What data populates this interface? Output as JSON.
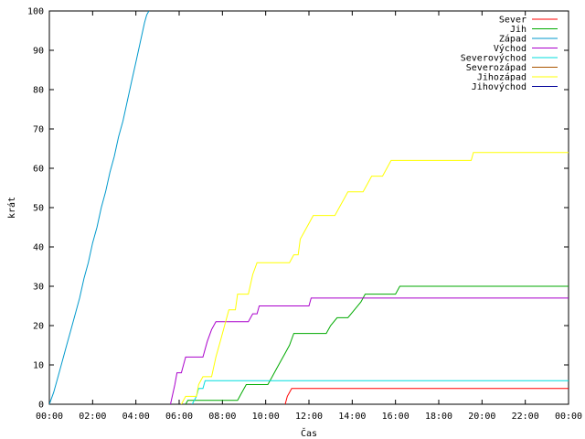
{
  "chart_data": {
    "type": "line",
    "title": "",
    "xlabel": "Čas",
    "ylabel": "krát",
    "xlim": [
      0,
      24
    ],
    "ylim": [
      0,
      100
    ],
    "grid": false,
    "legend_position": "top-right",
    "x_ticks": [
      {
        "value": 0,
        "label": "00:00"
      },
      {
        "value": 2,
        "label": "02:00"
      },
      {
        "value": 4,
        "label": "04:00"
      },
      {
        "value": 6,
        "label": "06:00"
      },
      {
        "value": 8,
        "label": "08:00"
      },
      {
        "value": 10,
        "label": "10:00"
      },
      {
        "value": 12,
        "label": "12:00"
      },
      {
        "value": 14,
        "label": "14:00"
      },
      {
        "value": 16,
        "label": "16:00"
      },
      {
        "value": 18,
        "label": "18:00"
      },
      {
        "value": 20,
        "label": "20:00"
      },
      {
        "value": 22,
        "label": "22:00"
      },
      {
        "value": 24,
        "label": "00:00"
      }
    ],
    "y_ticks": [
      {
        "value": 0,
        "label": "0"
      },
      {
        "value": 10,
        "label": "10"
      },
      {
        "value": 20,
        "label": "20"
      },
      {
        "value": 30,
        "label": "30"
      },
      {
        "value": 40,
        "label": "40"
      },
      {
        "value": 50,
        "label": "50"
      },
      {
        "value": 60,
        "label": "60"
      },
      {
        "value": 70,
        "label": "70"
      },
      {
        "value": 80,
        "label": "80"
      },
      {
        "value": 90,
        "label": "90"
      },
      {
        "value": 100,
        "label": "100"
      }
    ],
    "series": [
      {
        "name": "Sever",
        "color": "#ff0000",
        "points": [
          [
            10.9,
            0
          ],
          [
            11,
            2
          ],
          [
            11.1,
            3
          ],
          [
            11.2,
            4
          ],
          [
            24,
            4
          ]
        ]
      },
      {
        "name": "Jih",
        "color": "#00aa00",
        "points": [
          [
            6.3,
            0
          ],
          [
            6.4,
            1
          ],
          [
            8.7,
            1
          ],
          [
            8.9,
            3
          ],
          [
            9.1,
            5
          ],
          [
            10.1,
            5
          ],
          [
            10.3,
            7
          ],
          [
            10.5,
            9
          ],
          [
            10.7,
            11
          ],
          [
            10.9,
            13
          ],
          [
            11.1,
            15
          ],
          [
            11.3,
            18
          ],
          [
            12.8,
            18
          ],
          [
            13,
            20
          ],
          [
            13.3,
            22
          ],
          [
            13.8,
            22
          ],
          [
            14.1,
            24
          ],
          [
            14.4,
            26
          ],
          [
            14.6,
            28
          ],
          [
            16,
            28
          ],
          [
            16.2,
            30
          ],
          [
            24,
            30
          ]
        ]
      },
      {
        "name": "Západ",
        "color": "#0099cc",
        "points": [
          [
            0,
            0
          ],
          [
            0.2,
            3
          ],
          [
            0.4,
            7
          ],
          [
            0.6,
            11
          ],
          [
            0.8,
            15
          ],
          [
            1,
            19
          ],
          [
            1.2,
            23
          ],
          [
            1.4,
            27
          ],
          [
            1.6,
            32
          ],
          [
            1.8,
            36
          ],
          [
            2,
            41
          ],
          [
            2.2,
            45
          ],
          [
            2.4,
            50
          ],
          [
            2.6,
            54
          ],
          [
            2.8,
            59
          ],
          [
            3,
            63
          ],
          [
            3.2,
            68
          ],
          [
            3.4,
            72
          ],
          [
            3.6,
            77
          ],
          [
            3.8,
            82
          ],
          [
            4,
            87
          ],
          [
            4.2,
            92
          ],
          [
            4.4,
            97
          ],
          [
            4.5,
            99
          ],
          [
            4.6,
            100
          ]
        ]
      },
      {
        "name": "Východ",
        "color": "#aa00cc",
        "points": [
          [
            5.6,
            0
          ],
          [
            5.8,
            5
          ],
          [
            5.9,
            8
          ],
          [
            6.1,
            8
          ],
          [
            6.3,
            12
          ],
          [
            7.1,
            12
          ],
          [
            7.3,
            16
          ],
          [
            7.5,
            19
          ],
          [
            7.7,
            21
          ],
          [
            9.2,
            21
          ],
          [
            9.4,
            23
          ],
          [
            9.6,
            23
          ],
          [
            9.7,
            25
          ],
          [
            12,
            25
          ],
          [
            12.1,
            27
          ],
          [
            24,
            27
          ]
        ]
      },
      {
        "name": "Severovýchod",
        "color": "#00dddd",
        "points": [
          [
            6.6,
            0
          ],
          [
            6.8,
            2
          ],
          [
            6.9,
            4
          ],
          [
            7.1,
            4
          ],
          [
            7.2,
            6
          ],
          [
            24,
            6
          ]
        ]
      },
      {
        "name": "Severozápad",
        "color": "#aa5500",
        "points": [
          [
            24,
            0
          ]
        ]
      },
      {
        "name": "Jihozápad",
        "color": "#ffff00",
        "points": [
          [
            6.1,
            0
          ],
          [
            6.3,
            2
          ],
          [
            6.8,
            2
          ],
          [
            6.9,
            5
          ],
          [
            7.1,
            7
          ],
          [
            7.5,
            7
          ],
          [
            7.7,
            12
          ],
          [
            7.9,
            16
          ],
          [
            8.1,
            20
          ],
          [
            8.3,
            24
          ],
          [
            8.6,
            24
          ],
          [
            8.7,
            28
          ],
          [
            9.2,
            28
          ],
          [
            9.4,
            33
          ],
          [
            9.6,
            36
          ],
          [
            11.1,
            36
          ],
          [
            11.3,
            38
          ],
          [
            11.5,
            38
          ],
          [
            11.6,
            42
          ],
          [
            11.8,
            44
          ],
          [
            12,
            46
          ],
          [
            12.2,
            48
          ],
          [
            13.2,
            48
          ],
          [
            13.4,
            50
          ],
          [
            13.6,
            52
          ],
          [
            13.8,
            54
          ],
          [
            14.5,
            54
          ],
          [
            14.7,
            56
          ],
          [
            14.9,
            58
          ],
          [
            15.4,
            58
          ],
          [
            15.6,
            60
          ],
          [
            15.8,
            62
          ],
          [
            19.5,
            62
          ],
          [
            19.6,
            64
          ],
          [
            24,
            64
          ]
        ]
      },
      {
        "name": "Jihovýchod",
        "color": "#000099",
        "points": [
          [
            24,
            0
          ]
        ]
      }
    ]
  }
}
